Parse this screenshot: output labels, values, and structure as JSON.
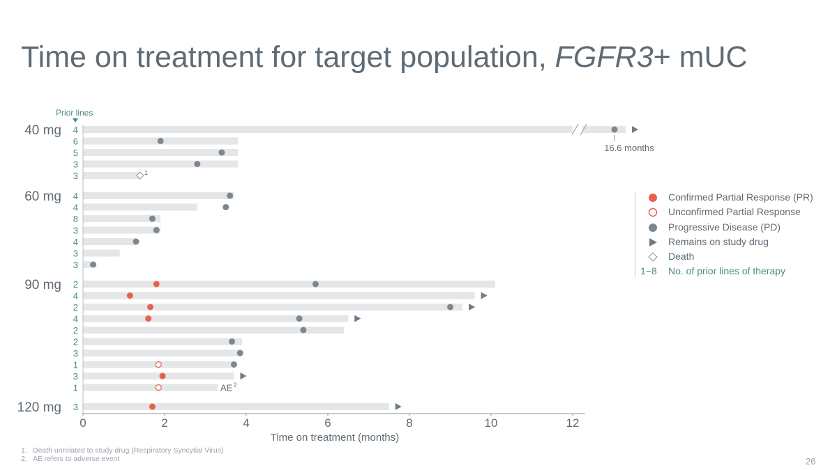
{
  "title_parts": {
    "prefix": "Time on treatment for target population, ",
    "gene": "FGFR3",
    "suffix": "+ mUC"
  },
  "page_number": "26",
  "footnotes": [
    {
      "marker": "1.",
      "text": "Death unrelated to study drug (Respiratory Syncytial Virus)"
    },
    {
      "marker": "2.",
      "text": "AE refers to adverse event"
    }
  ],
  "legend": {
    "items": [
      {
        "symbol": "circle-filled",
        "label": "Confirmed Partial Response (PR)"
      },
      {
        "symbol": "circle-open",
        "label": "Unconfirmed Partial Response"
      },
      {
        "symbol": "circle-gray",
        "label": "Progressive Disease (PD)"
      },
      {
        "symbol": "triangle",
        "label": "Remains on study drug"
      },
      {
        "symbol": "diamond",
        "label": "Death"
      }
    ],
    "prior_lines_key": "1−8",
    "prior_lines_label": "No. of prior lines of therapy"
  },
  "colors": {
    "pr": "#e8624b",
    "pd": "#7c8790",
    "bar": "#e4e6e8",
    "teal": "#4a8a86",
    "text": "#5f6b74",
    "axis": "#5f6b74"
  },
  "chart_data": {
    "type": "swimmer",
    "xlabel": "Time on treatment (months)",
    "xlim": [
      0,
      12.3
    ],
    "xticks": [
      0,
      2,
      4,
      6,
      8,
      10,
      12
    ],
    "prior_lines_label": "Prior lines",
    "axis_break_value_label": "16.6 months",
    "groups": [
      {
        "dose": "40 mg",
        "patients": [
          {
            "prior_lines": 4,
            "duration": 16.6,
            "broken_axis": true,
            "events": [
              {
                "type": "pd",
                "t": 16.6
              }
            ],
            "ongoing": true
          },
          {
            "prior_lines": 6,
            "duration": 3.8,
            "events": [
              {
                "type": "pd",
                "t": 1.9
              }
            ]
          },
          {
            "prior_lines": 5,
            "duration": 3.8,
            "events": [
              {
                "type": "pd",
                "t": 3.4
              }
            ]
          },
          {
            "prior_lines": 3,
            "duration": 3.8,
            "events": [
              {
                "type": "pd",
                "t": 2.8
              }
            ]
          },
          {
            "prior_lines": 3,
            "duration": 1.4,
            "events": [
              {
                "type": "death",
                "t": 1.4,
                "note": "1"
              }
            ]
          }
        ]
      },
      {
        "dose": "60 mg",
        "patients": [
          {
            "prior_lines": 4,
            "duration": 3.7,
            "events": [
              {
                "type": "pd",
                "t": 3.6
              }
            ]
          },
          {
            "prior_lines": 4,
            "duration": 2.8,
            "events": [
              {
                "type": "pd",
                "t": 3.5
              }
            ]
          },
          {
            "prior_lines": 8,
            "duration": 1.9,
            "events": [
              {
                "type": "pd",
                "t": 1.7
              }
            ]
          },
          {
            "prior_lines": 3,
            "duration": 1.9,
            "events": [
              {
                "type": "pd",
                "t": 1.8
              }
            ]
          },
          {
            "prior_lines": 4,
            "duration": 1.3,
            "events": [
              {
                "type": "pd",
                "t": 1.3
              }
            ]
          },
          {
            "prior_lines": 3,
            "duration": 0.9,
            "events": []
          },
          {
            "prior_lines": 3,
            "duration": 0.2,
            "events": [
              {
                "type": "pd",
                "t": 0.25
              }
            ]
          }
        ]
      },
      {
        "dose": "90 mg",
        "patients": [
          {
            "prior_lines": 2,
            "duration": 10.1,
            "events": [
              {
                "type": "pr",
                "t": 1.8
              },
              {
                "type": "pd",
                "t": 5.7
              }
            ]
          },
          {
            "prior_lines": 4,
            "duration": 9.6,
            "events": [
              {
                "type": "pr",
                "t": 1.15
              }
            ],
            "ongoing": true
          },
          {
            "prior_lines": 2,
            "duration": 9.3,
            "events": [
              {
                "type": "pr",
                "t": 1.65
              },
              {
                "type": "pd",
                "t": 9.0
              }
            ],
            "ongoing": true
          },
          {
            "prior_lines": 4,
            "duration": 6.5,
            "events": [
              {
                "type": "pr",
                "t": 1.6
              },
              {
                "type": "pd",
                "t": 5.3
              }
            ],
            "ongoing": true
          },
          {
            "prior_lines": 2,
            "duration": 6.4,
            "events": [
              {
                "type": "pd",
                "t": 5.4
              }
            ]
          },
          {
            "prior_lines": 2,
            "duration": 3.9,
            "events": [
              {
                "type": "pd",
                "t": 3.65
              }
            ]
          },
          {
            "prior_lines": 3,
            "duration": 3.9,
            "events": [
              {
                "type": "pd",
                "t": 3.85
              }
            ]
          },
          {
            "prior_lines": 1,
            "duration": 3.7,
            "events": [
              {
                "type": "upr",
                "t": 1.85
              },
              {
                "type": "pd",
                "t": 3.7
              }
            ]
          },
          {
            "prior_lines": 3,
            "duration": 3.7,
            "events": [
              {
                "type": "pr",
                "t": 1.95
              }
            ],
            "ongoing": true
          },
          {
            "prior_lines": 1,
            "duration": 3.3,
            "events": [
              {
                "type": "upr",
                "t": 1.85
              }
            ],
            "annotation": "AE",
            "annotation_note": "2"
          }
        ]
      },
      {
        "dose": "120 mg",
        "patients": [
          {
            "prior_lines": 3,
            "duration": 7.5,
            "events": [
              {
                "type": "pr",
                "t": 1.7
              }
            ],
            "ongoing": true
          }
        ]
      }
    ]
  }
}
